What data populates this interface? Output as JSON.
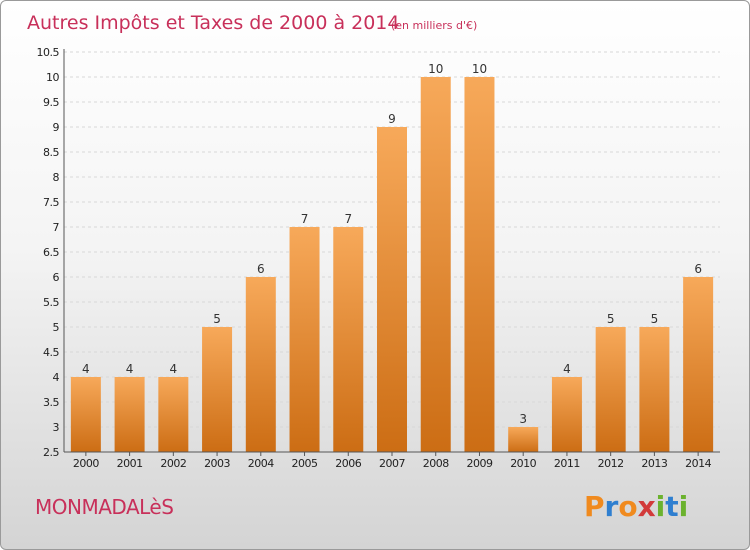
{
  "header": {
    "title": "Autres Impôts et Taxes de 2000 à 2014",
    "unit_note": "(en milliers d'€)"
  },
  "footer": {
    "town": "MONMADALèS",
    "brand_letters": [
      "P",
      "r",
      "o",
      "x",
      "i",
      "t",
      "i"
    ],
    "brand_colors": [
      "#f08a1e",
      "#2f7fd0",
      "#f08a1e",
      "#d23a3a",
      "#6bb22e",
      "#2f7fd0",
      "#6bb22e"
    ]
  },
  "colors": {
    "bar_light": "#f7a95a",
    "bar_dark": "#cc6d14",
    "accent": "#c8305a"
  },
  "chart_data": {
    "type": "bar",
    "title": "Autres Impôts et Taxes de 2000 à 2014",
    "subtitle": "(en milliers d'€)",
    "categories": [
      "2000",
      "2001",
      "2002",
      "2003",
      "2004",
      "2005",
      "2006",
      "2007",
      "2008",
      "2009",
      "2010",
      "2011",
      "2012",
      "2013",
      "2014"
    ],
    "values": [
      4,
      4,
      4,
      5,
      6,
      7,
      7,
      9,
      10,
      10,
      3,
      4,
      5,
      5,
      6
    ],
    "yticks": [
      "2.5",
      "3",
      "3.5",
      "4",
      "4.5",
      "5",
      "5.5",
      "6",
      "6.5",
      "7",
      "7.5",
      "8",
      "8.5",
      "9",
      "9.5",
      "10",
      "10.5"
    ],
    "ylim": [
      2.5,
      10.5
    ],
    "grid": true,
    "legend": "none"
  }
}
